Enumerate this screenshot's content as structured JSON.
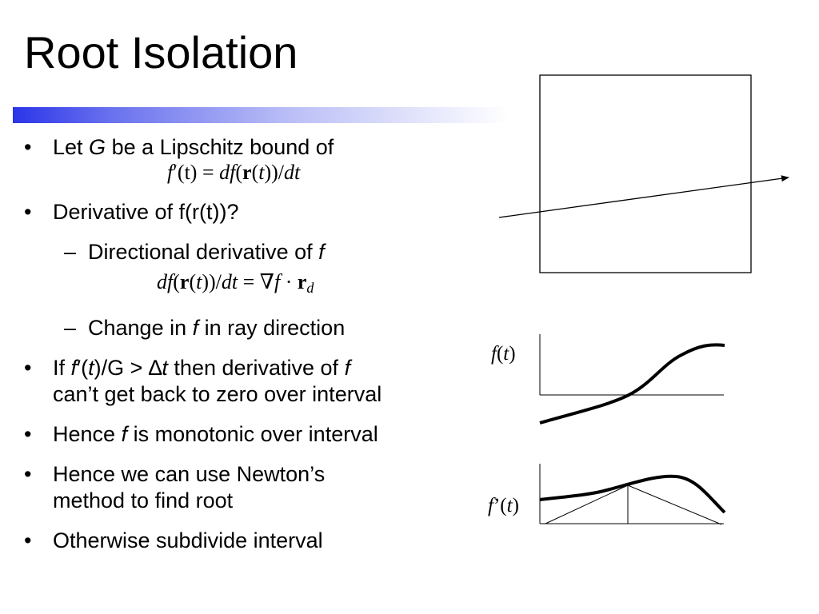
{
  "slide": {
    "title": "Root Isolation",
    "bullet_marker": "•",
    "dash_marker": "–"
  },
  "bullets": {
    "b1_pre": "Let ",
    "b1_var": "G",
    "b1_post": " be a Lipschitz bound of",
    "b1f_f": "f",
    "b1f_prime": "′",
    "b1f_eq": "(t) = ",
    "b1f_df": "df",
    "b1f_open": "(",
    "b1f_r": "r",
    "b1f_open2": "(",
    "b1f_t": "t",
    "b1f_close": "))/",
    "b1f_dt": "dt",
    "b2_text": "Derivative of f(r(t))?",
    "s1_pre": "Directional derivative of ",
    "s1_var": "f",
    "fm_df": "df",
    "fm_open": "(",
    "fm_r": "r",
    "fm_open2": "(",
    "fm_t": "t",
    "fm_close": "))/",
    "fm_dt": "dt",
    "fm_eq": " = ∇",
    "fm_f": "f",
    "fm_dot": " · ",
    "fm_r2": "r",
    "fm_sub": "d",
    "s2_pre": "Change in ",
    "s2_var": "f",
    "s2_post": " in ray direction",
    "b3_pre": "If ",
    "b3_f": "f",
    "b3_prime": "′",
    "b3_open": "(",
    "b3_t": "t",
    "b3_mid": ")/G > ∆",
    "b3_t2": "t",
    "b3_post": " then derivative of ",
    "b3_f2": "f",
    "b3_line2": "can’t get back to zero over interval",
    "b4_pre": "Hence ",
    "b4_var": "f",
    "b4_post": " is monotonic over interval",
    "b5_line1": "Hence we can use Newton’s",
    "b5_line2": "method to find root",
    "b6_text": "Otherwise subdivide interval"
  },
  "figures": {
    "ft_f": "f",
    "ft_open": "(",
    "ft_t": "t",
    "ft_close": ")",
    "fpt_f": "f",
    "fpt_prime": "’",
    "fpt_open": "(",
    "fpt_t": "t",
    "fpt_close": ")"
  }
}
